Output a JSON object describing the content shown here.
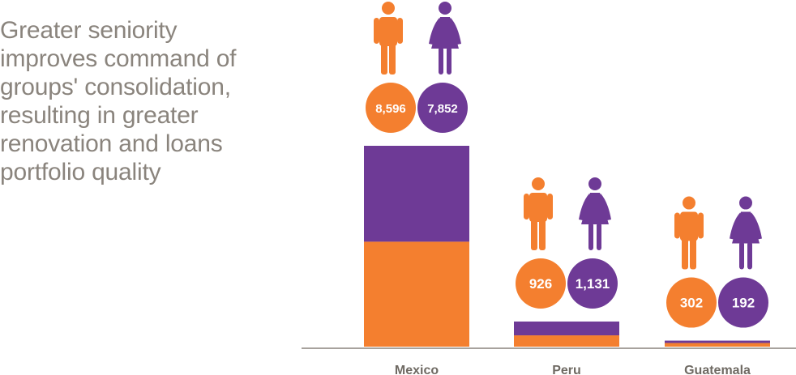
{
  "headline": "Greater seniority improves command of groups' consolidation, resulting in greater renovation and loans portfolio quality",
  "colors": {
    "men": "#f47f2f",
    "women": "#6e3a96",
    "axis": "#8a847d",
    "text": "#8a847d"
  },
  "icons": {
    "men": "man-icon",
    "women": "woman-icon"
  },
  "chart_data": {
    "type": "bar",
    "stacked": true,
    "categories": [
      "Mexico",
      "Peru",
      "Guatemala"
    ],
    "series": [
      {
        "key": "men",
        "values": [
          8596,
          926,
          302
        ],
        "labels": [
          "8,596",
          "926",
          "302"
        ]
      },
      {
        "key": "women",
        "values": [
          7852,
          1131,
          192
        ],
        "labels": [
          "7,852",
          "1,131",
          "192"
        ]
      }
    ],
    "title": "",
    "xlabel": "",
    "ylabel": "",
    "grid": false,
    "legend": "none"
  }
}
